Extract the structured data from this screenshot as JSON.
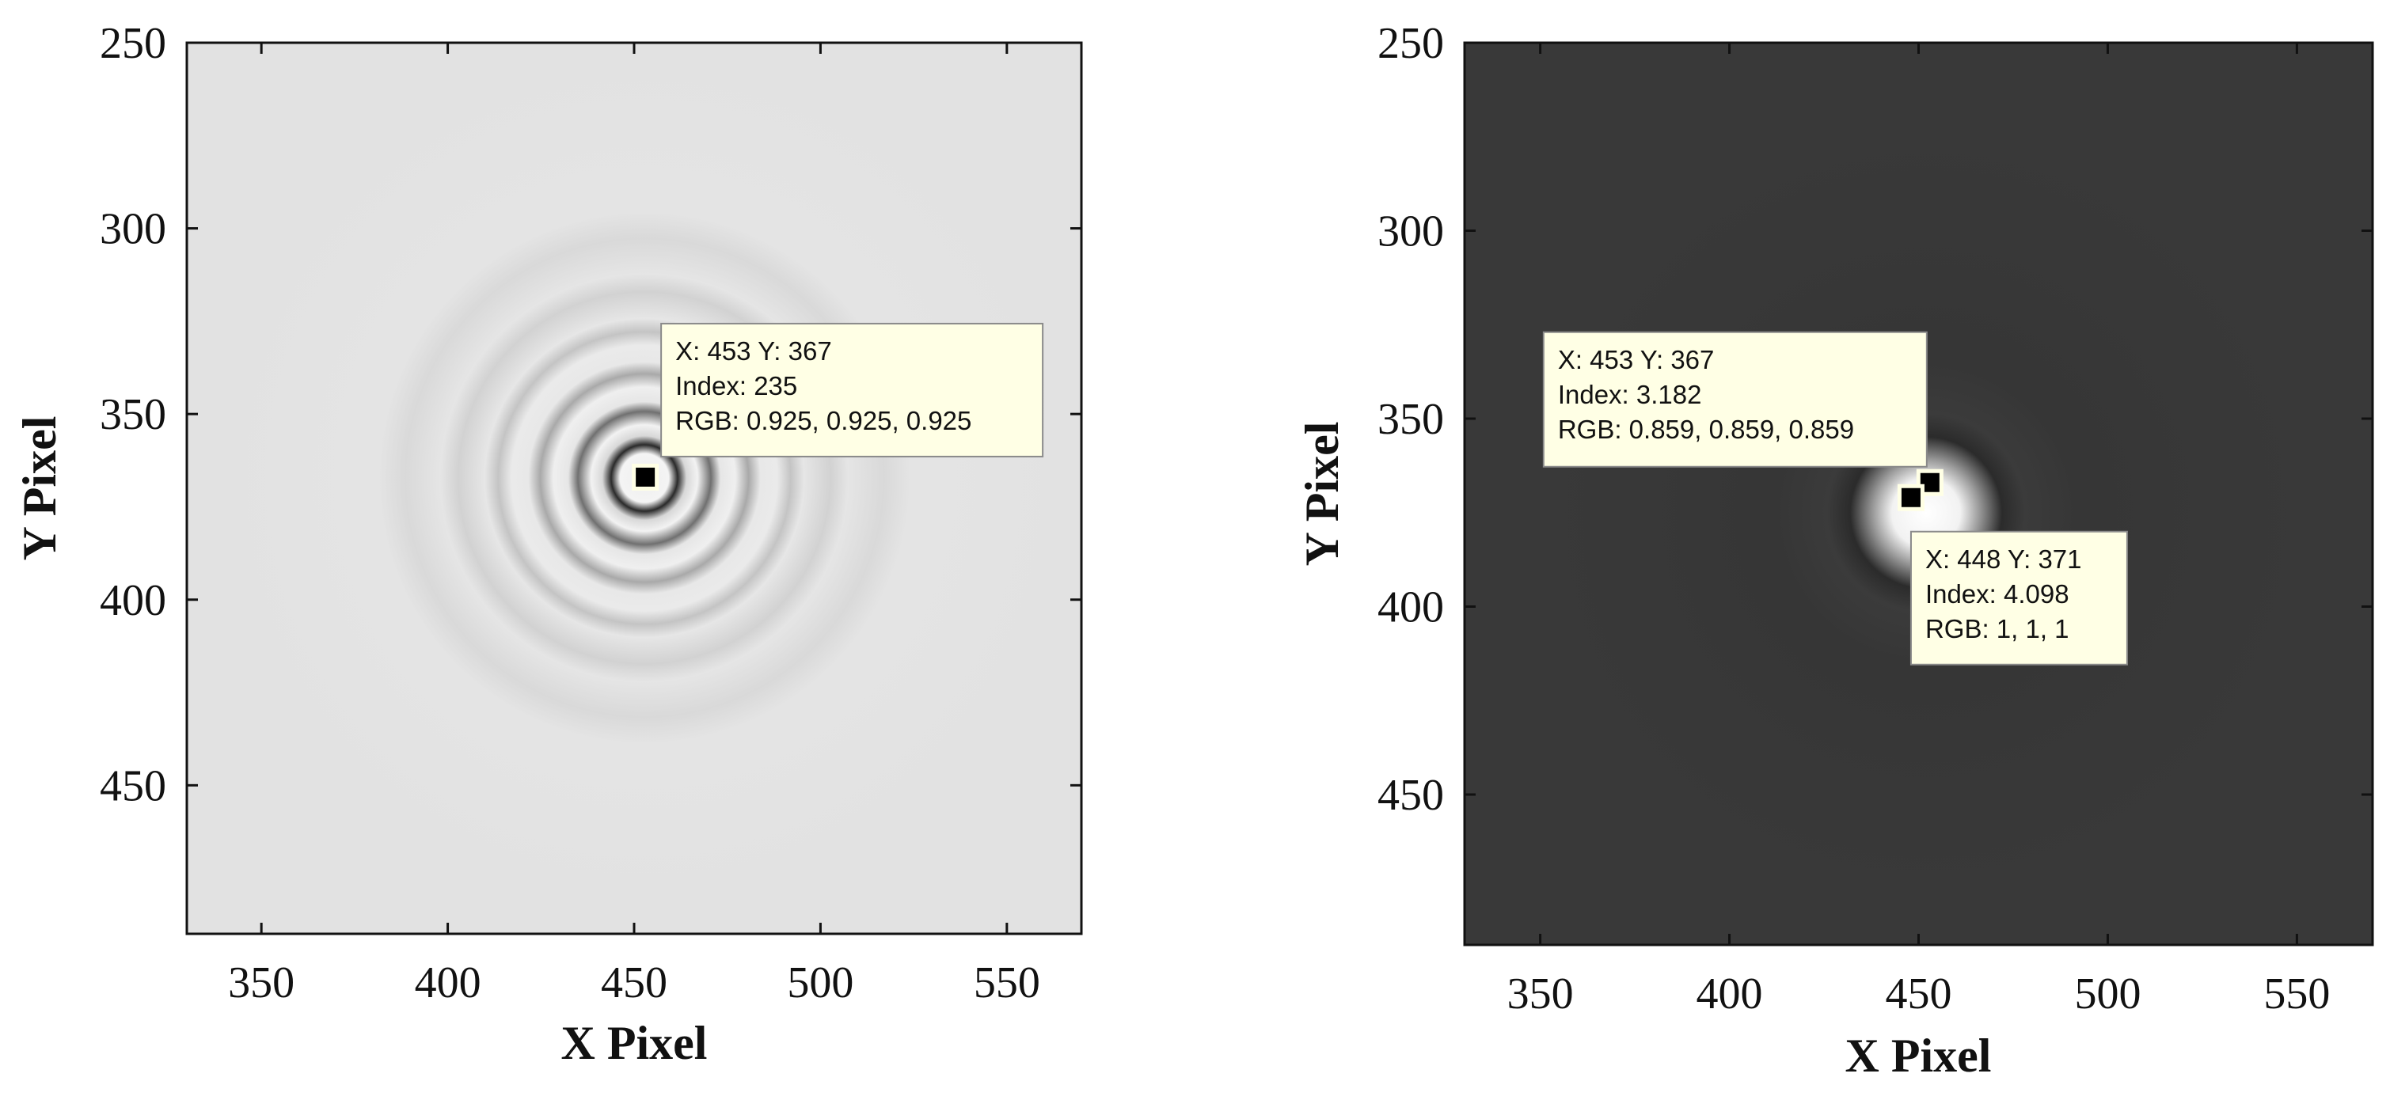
{
  "chart_data": [
    {
      "type": "heatmap",
      "title": "",
      "xlabel": "X Pixel",
      "ylabel": "Y Pixel",
      "xlim": [
        330,
        570
      ],
      "ylim": [
        490,
        250
      ],
      "xticks": [
        350,
        400,
        450,
        500,
        550
      ],
      "yticks": [
        250,
        300,
        350,
        400,
        450
      ],
      "grid": false,
      "background_color": "#e6e6e6",
      "center": {
        "x": 452,
        "y": 367
      },
      "pattern": "dark rings on light background",
      "datatips": [
        {
          "x": 453,
          "y": 367,
          "label_x": "X: 453 Y: 367",
          "label_index": "Index: 235",
          "label_rgb": "RGB: 0.925, 0.925, 0.925"
        }
      ]
    },
    {
      "type": "heatmap",
      "title": "",
      "xlabel": "X Pixel",
      "ylabel": "Y Pixel",
      "xlim": [
        330,
        570
      ],
      "ylim": [
        490,
        250
      ],
      "xticks": [
        350,
        400,
        450,
        500,
        550
      ],
      "yticks": [
        250,
        300,
        350,
        400,
        450
      ],
      "grid": false,
      "background_color": "#3a3a3a",
      "center": {
        "x": 450,
        "y": 370
      },
      "pattern": "bright spot on dark background",
      "datatips": [
        {
          "x": 453,
          "y": 367,
          "label_x": "X: 453 Y: 367",
          "label_index": "Index: 3.182",
          "label_rgb": "RGB: 0.859, 0.859, 0.859"
        },
        {
          "x": 448,
          "y": 371,
          "label_x": "X: 448 Y: 371",
          "label_index": "Index: 4.098",
          "label_rgb": "RGB: 1, 1, 1"
        }
      ]
    }
  ]
}
